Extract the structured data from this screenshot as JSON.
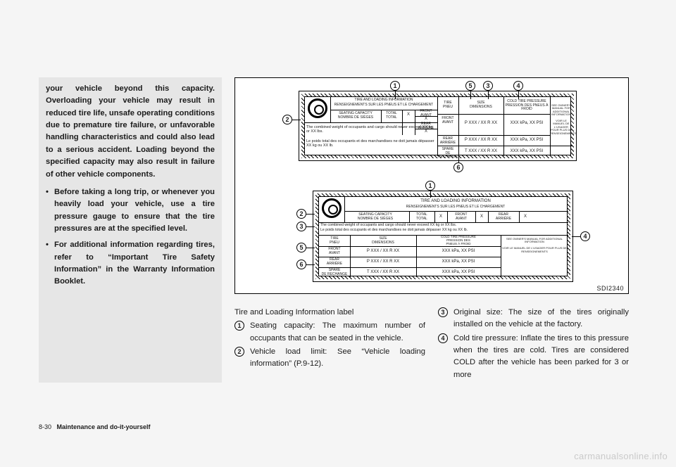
{
  "left_column": {
    "para1": "your vehicle beyond this capacity. Overloading your vehicle may result in reduced tire life, unsafe operating conditions due to premature tire failure, or unfavorable handling characteristics and could also lead to a serious accident. Loading beyond the specified capacity may also result in failure of other vehicle components.",
    "bullet1": "Before taking a long trip, or whenever you heavily load your vehicle, use a tire pressure gauge to ensure that the tire pressures are at the specified level.",
    "bullet2": "For additional information regarding tires, refer to “Important Tire Safety Information” in the Warranty Information Booklet."
  },
  "figure": {
    "caption_id": "SDI2340",
    "top_label": {
      "header": "TIRE AND LOADING INFORMATION",
      "header_fr": "RENSEIGNEMENTS SUR LES PNEUS ET LE CHARGEMENT",
      "cols": {
        "seating": "SEATING CAPACITY\nNOMBRE DE SIÈGES",
        "total": "TOTAL\nTOTAL",
        "tire": "TIRE\nPNEU",
        "size": "SIZE\nDIMENSIONS",
        "pressure": "COLD TIRE PRESSURE\nPRESSION DES PNEUS À FROID",
        "owners": "SEE OWNER'S MANUAL FOR ADDITIONAL INFORMATION\n\nVOIR LE MANUEL DE L'USAGER POUR PLUS DE RENSEIGNEMENTS"
      },
      "rows": {
        "front": "FRONT\nAVANT",
        "rear": "REAR\nARRIÈRE",
        "spare": "SPARE\nDE RECHANGE",
        "size_val": "P XXX / XX R XX",
        "size_spare": "T XXX / XX R XX",
        "pressure_val": "XXX kPa, XX PSI"
      },
      "note_en": "The combined weight of occupants and cargo should never exceed XX kg or XX lbs.",
      "note_fr": "Le poids total des occupants et des marchandises ne doit jamais dépasser XX kg ou XX lb.",
      "x": "X"
    },
    "callouts": [
      "1",
      "2",
      "3",
      "4",
      "5",
      "6"
    ]
  },
  "caption_title": "Tire and Loading Information label",
  "items_col_a": [
    {
      "n": "1",
      "text": "Seating capacity: The maximum number of occupants that can be seated in the vehicle."
    },
    {
      "n": "2",
      "text": "Vehicle load limit: See “Vehicle loading information” (P.9-12)."
    }
  ],
  "items_col_b": [
    {
      "n": "3",
      "text": "Original size: The size of the tires originally installed on the vehicle at the factory."
    },
    {
      "n": "4",
      "text": "Cold tire pressure: Inflate the tires to this pressure when the tires are cold. Tires are considered COLD after the vehicle has been parked for 3 or more"
    }
  ],
  "footer": {
    "page": "8-30",
    "section": "Maintenance and do-it-yourself"
  },
  "watermark": "carmanualsonline.info",
  "colors": {
    "page_bg": "#f5f5f5",
    "ink": "#1a1a1a",
    "box_bg": "#e6e6e6"
  }
}
